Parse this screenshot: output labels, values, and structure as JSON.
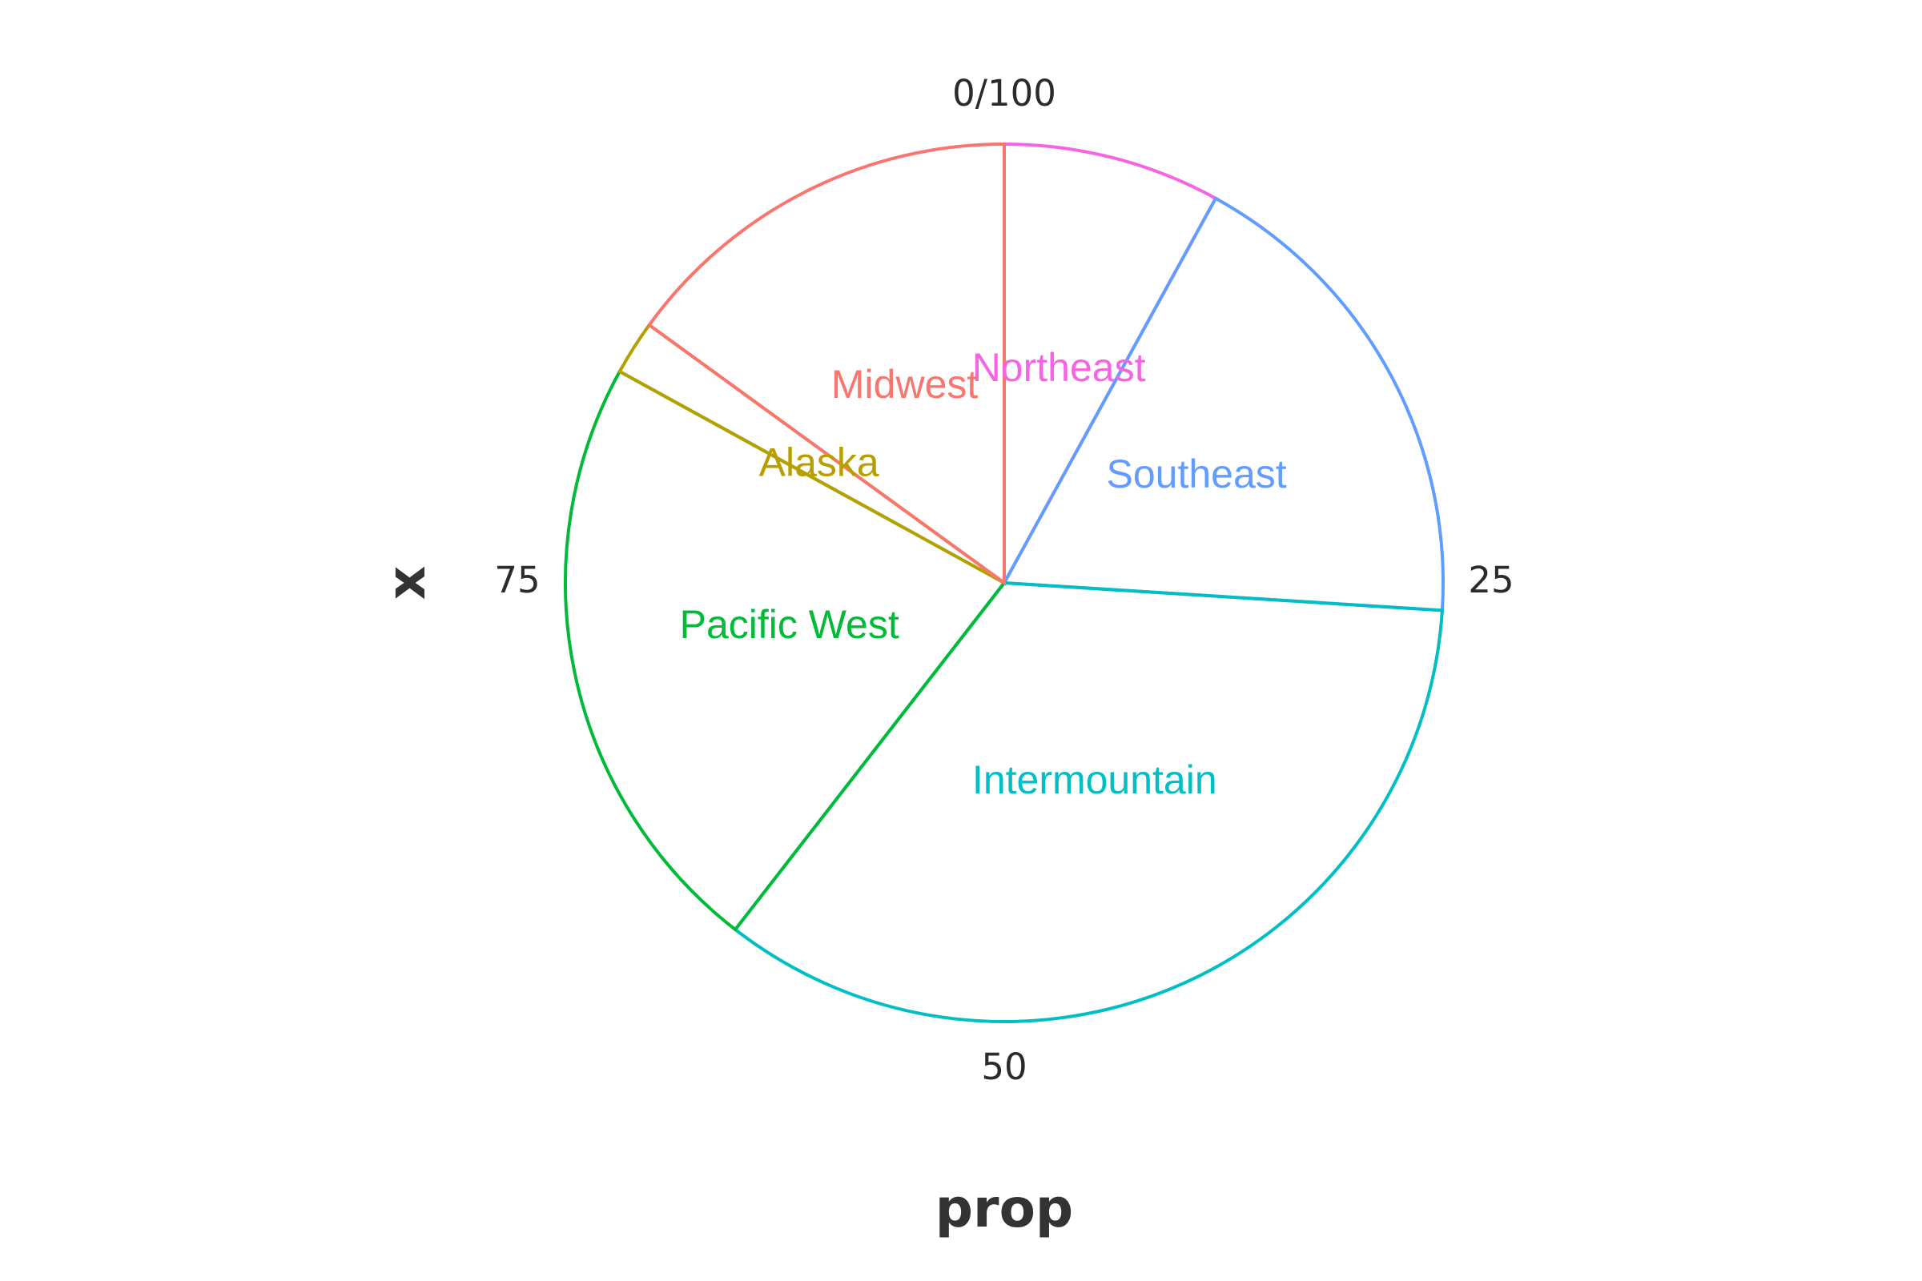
{
  "chart_data": {
    "type": "pie",
    "xlabel": "prop",
    "ylabel": "x",
    "theta_ticks": [
      {
        "value": 0,
        "label": "0/100"
      },
      {
        "value": 25,
        "label": "25"
      },
      {
        "value": 50,
        "label": "50"
      },
      {
        "value": 75,
        "label": "75"
      }
    ],
    "slices": [
      {
        "name": "Northeast",
        "start": 0.0,
        "end": 8.0,
        "color": "#F564E3"
      },
      {
        "name": "Southeast",
        "start": 8.0,
        "end": 26.0,
        "color": "#619CFF"
      },
      {
        "name": "Intermountain",
        "start": 26.0,
        "end": 60.5,
        "color": "#00BFC4"
      },
      {
        "name": "Pacific West",
        "start": 60.5,
        "end": 83.0,
        "color": "#00BA38"
      },
      {
        "name": "Alaska",
        "start": 83.0,
        "end": 85.0,
        "color": "#B79F00"
      },
      {
        "name": "Midwest",
        "start": 85.0,
        "end": 100.0,
        "color": "#F8766D"
      }
    ]
  }
}
